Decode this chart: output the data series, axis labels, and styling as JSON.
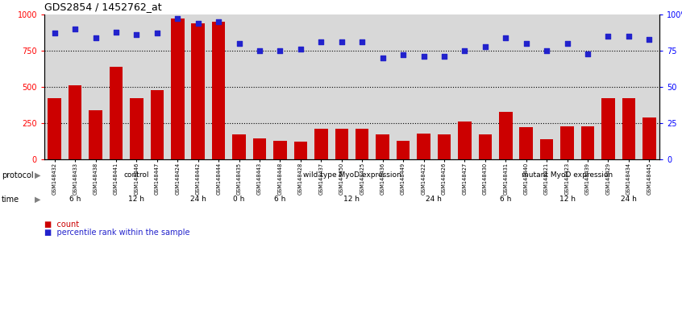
{
  "title": "GDS2854 / 1452762_at",
  "samples": [
    "GSM148432",
    "GSM148433",
    "GSM148438",
    "GSM148441",
    "GSM148446",
    "GSM148447",
    "GSM148424",
    "GSM148442",
    "GSM148444",
    "GSM148435",
    "GSM148443",
    "GSM148448",
    "GSM148428",
    "GSM148437",
    "GSM148450",
    "GSM148425",
    "GSM148436",
    "GSM148449",
    "GSM148422",
    "GSM148426",
    "GSM148427",
    "GSM148430",
    "GSM148431",
    "GSM148440",
    "GSM148421",
    "GSM148423",
    "GSM148439",
    "GSM148429",
    "GSM148434",
    "GSM148445"
  ],
  "counts": [
    420,
    510,
    340,
    640,
    420,
    480,
    970,
    940,
    950,
    175,
    145,
    130,
    125,
    210,
    210,
    210,
    175,
    130,
    180,
    175,
    260,
    170,
    330,
    225,
    140,
    230,
    230,
    420,
    420,
    290
  ],
  "percentiles": [
    87,
    90,
    84,
    88,
    86,
    87,
    97,
    94,
    95,
    80,
    75,
    75,
    76,
    81,
    81,
    81,
    70,
    72,
    71,
    71,
    75,
    78,
    84,
    80,
    75,
    80,
    73,
    85,
    85,
    83
  ],
  "bar_color": "#cc0000",
  "dot_color": "#2222cc",
  "chart_bg": "#d8d8d8",
  "ylim_left": [
    0,
    1000
  ],
  "ylim_right": [
    0,
    100
  ],
  "yticks_left": [
    0,
    250,
    500,
    750,
    1000
  ],
  "yticks_right": [
    0,
    25,
    50,
    75,
    100
  ],
  "hlines": [
    250,
    500,
    750
  ],
  "protocol_groups": [
    {
      "label": "control",
      "start": 0,
      "end": 9,
      "color": "#ccf0cc"
    },
    {
      "label": "wild type MyoD expression",
      "start": 9,
      "end": 21,
      "color": "#66dd66"
    },
    {
      "label": "mutant MyoD expression",
      "start": 21,
      "end": 30,
      "color": "#44cc44"
    }
  ],
  "time_groups": [
    {
      "label": "6 h",
      "start": 0,
      "end": 3,
      "color": "#f0a0f0"
    },
    {
      "label": "12 h",
      "start": 3,
      "end": 6,
      "color": "#dd66dd"
    },
    {
      "label": "24 h",
      "start": 6,
      "end": 9,
      "color": "#cc22cc"
    },
    {
      "label": "0 h",
      "start": 9,
      "end": 10,
      "color": "#f0a0f0"
    },
    {
      "label": "6 h",
      "start": 10,
      "end": 13,
      "color": "#dd66dd"
    },
    {
      "label": "12 h",
      "start": 13,
      "end": 17,
      "color": "#cc22cc"
    },
    {
      "label": "24 h",
      "start": 17,
      "end": 21,
      "color": "#dd66dd"
    },
    {
      "label": "6 h",
      "start": 21,
      "end": 24,
      "color": "#f0a0f0"
    },
    {
      "label": "12 h",
      "start": 24,
      "end": 27,
      "color": "#dd66dd"
    },
    {
      "label": "24 h",
      "start": 27,
      "end": 30,
      "color": "#cc22cc"
    }
  ]
}
